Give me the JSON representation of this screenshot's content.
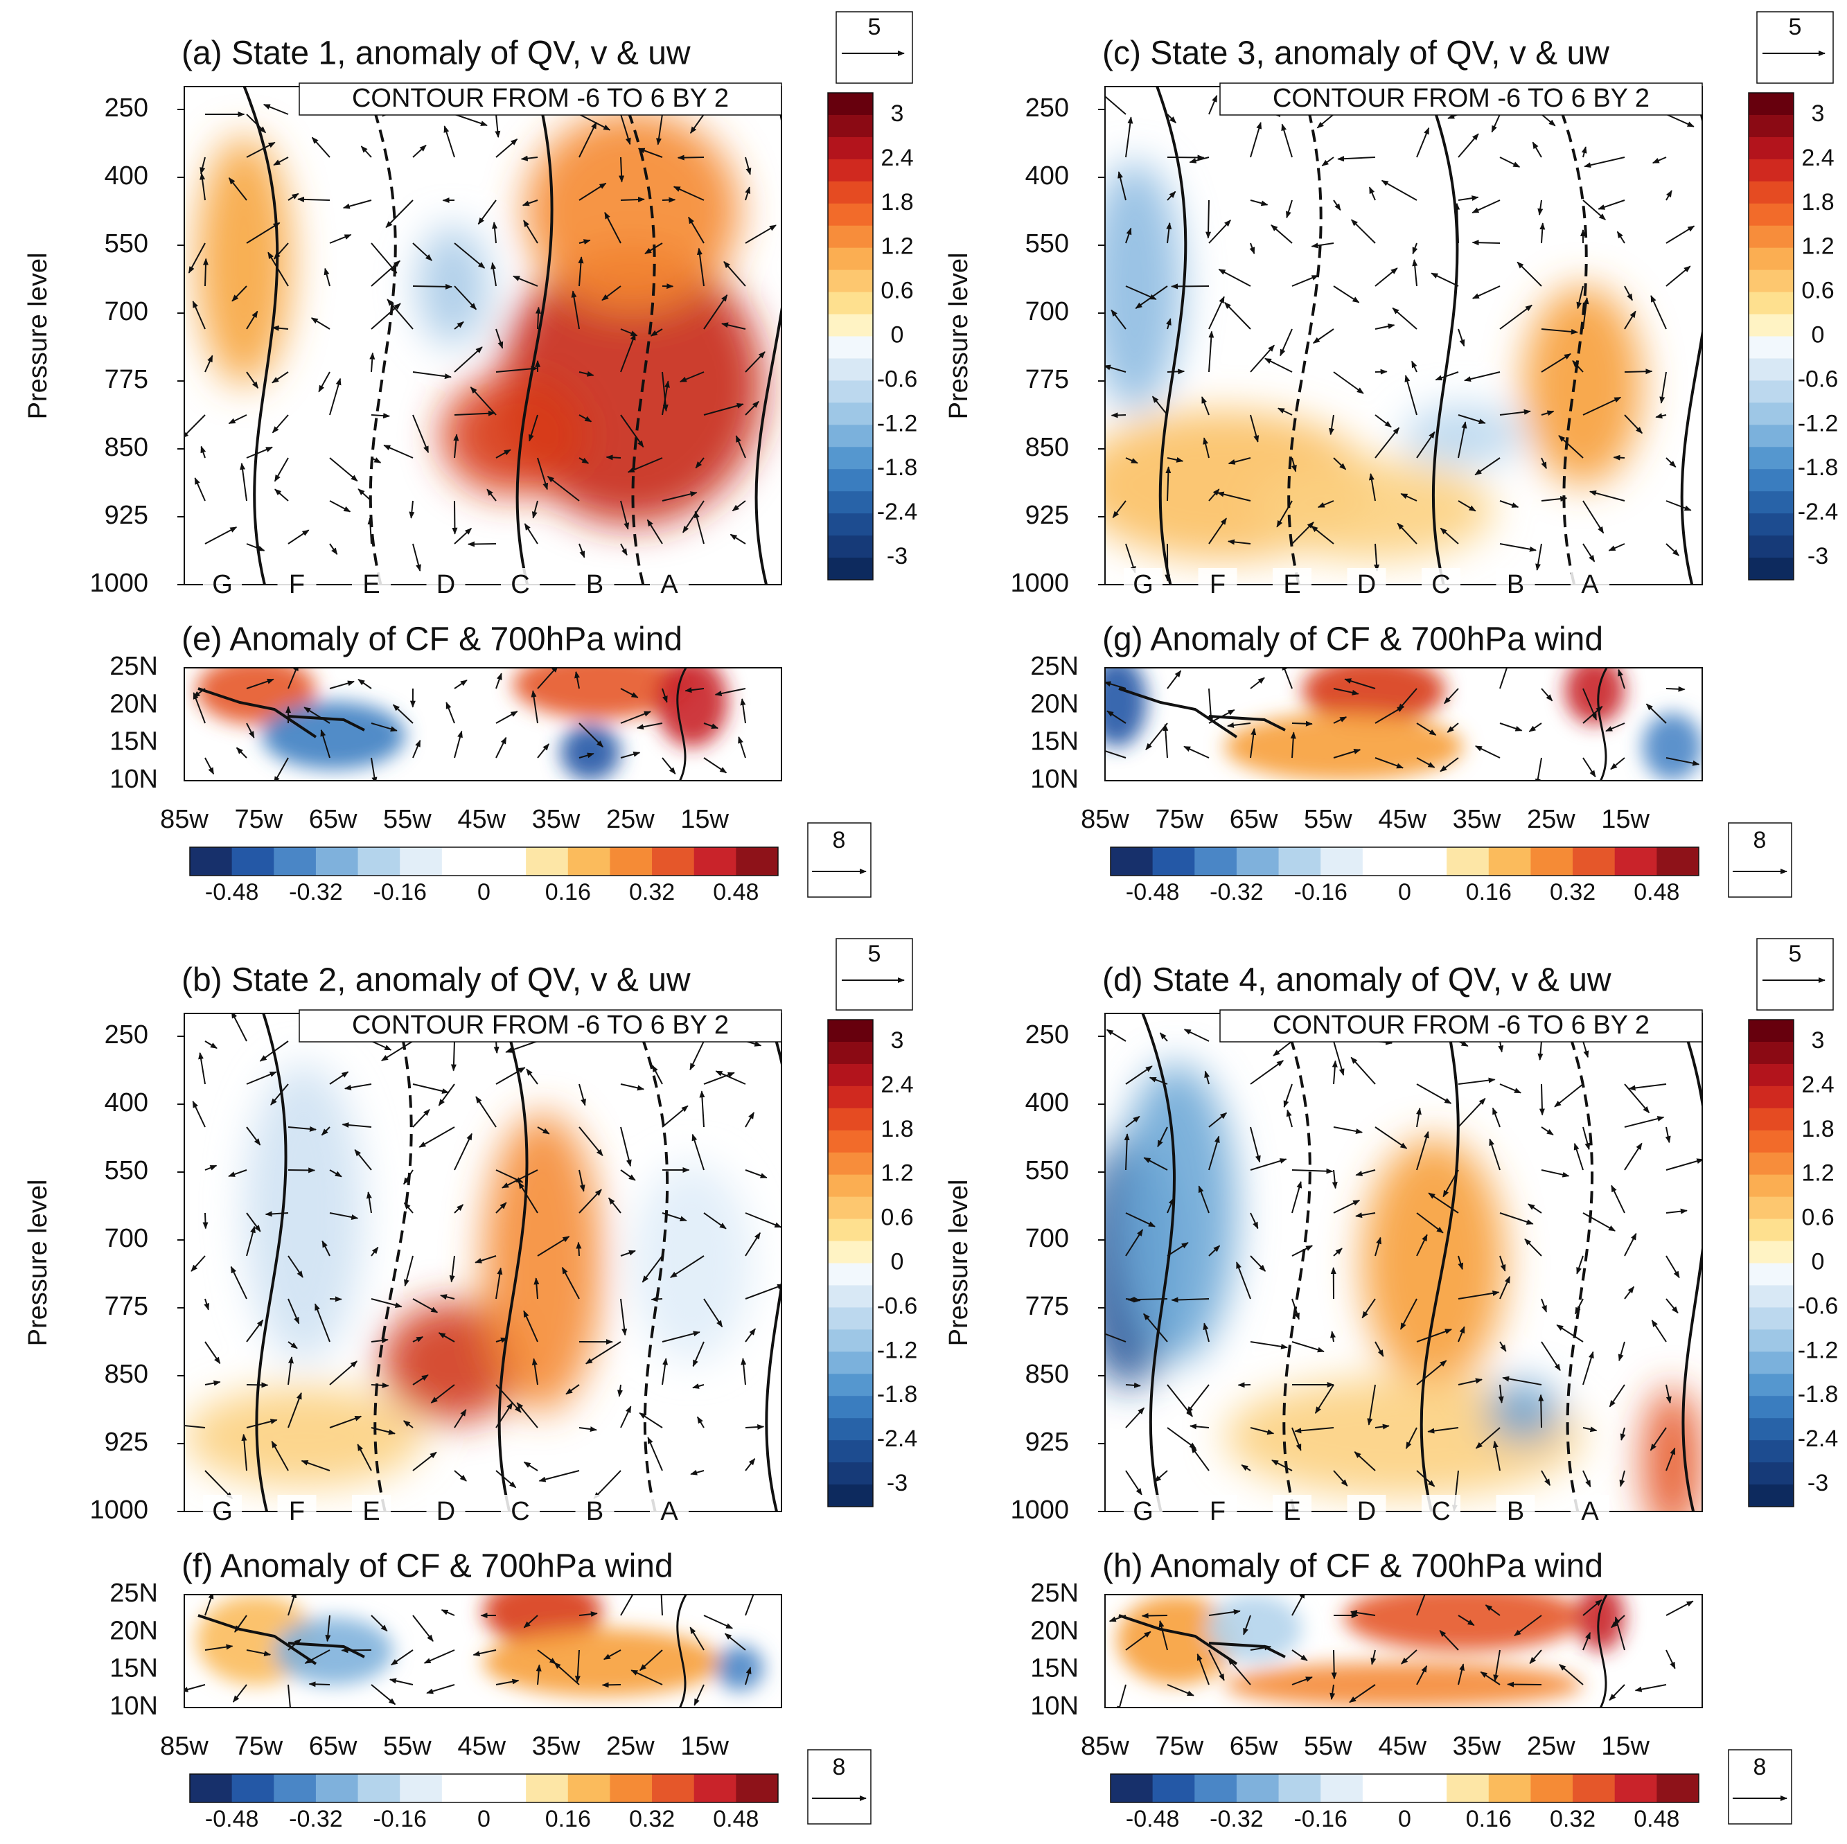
{
  "panels": [
    {
      "title": "(a) State 1, anomaly of QV, v & uw",
      "contour_note": "CONTOUR FROM -6 TO 6 BY 2",
      "ylabel": "Pressure level",
      "yticks": [
        250,
        400,
        550,
        700,
        775,
        850,
        925,
        1000
      ],
      "points": [
        "G",
        "F",
        "E",
        "D",
        "C",
        "B",
        "A"
      ],
      "colorbar_ticks": [
        3,
        2.4,
        1.8,
        1.2,
        0.6,
        0,
        -0.6,
        -1.2,
        -1.8,
        -2.4,
        -3
      ],
      "reference_vector": 5,
      "map": {
        "title": "(e) Anomaly of CF & 700hPa wind",
        "yticks": [
          "25N",
          "20N",
          "15N",
          "10N"
        ],
        "xticks": [
          "85w",
          "75w",
          "65w",
          "55w",
          "45w",
          "35w",
          "25w",
          "15w"
        ],
        "colorbar_ticks": [
          -0.48,
          -0.32,
          -0.16,
          0,
          0.16,
          0.32,
          0.48
        ],
        "reference_vector": 8
      }
    },
    {
      "title": "(c) State 3, anomaly of QV, v & uw",
      "contour_note": "CONTOUR FROM -6 TO 6 BY 2",
      "ylabel": "Pressure level",
      "yticks": [
        250,
        400,
        550,
        700,
        775,
        850,
        925,
        1000
      ],
      "points": [
        "G",
        "F",
        "E",
        "D",
        "C",
        "B",
        "A"
      ],
      "colorbar_ticks": [
        3,
        2.4,
        1.8,
        1.2,
        0.6,
        0,
        -0.6,
        -1.2,
        -1.8,
        -2.4,
        -3
      ],
      "reference_vector": 5,
      "map": {
        "title": "(g) Anomaly of CF & 700hPa wind",
        "yticks": [
          "25N",
          "20N",
          "15N",
          "10N"
        ],
        "xticks": [
          "85w",
          "75w",
          "65w",
          "55w",
          "45w",
          "35w",
          "25w",
          "15w"
        ],
        "colorbar_ticks": [
          -0.48,
          -0.32,
          -0.16,
          0,
          0.16,
          0.32,
          0.48
        ],
        "reference_vector": 8
      }
    },
    {
      "title": "(b) State 2, anomaly of QV, v & uw",
      "contour_note": "CONTOUR FROM -6 TO 6 BY 2",
      "ylabel": "Pressure level",
      "yticks": [
        250,
        400,
        550,
        700,
        775,
        850,
        925,
        1000
      ],
      "points": [
        "G",
        "F",
        "E",
        "D",
        "C",
        "B",
        "A"
      ],
      "colorbar_ticks": [
        3,
        2.4,
        1.8,
        1.2,
        0.6,
        0,
        -0.6,
        -1.2,
        -1.8,
        -2.4,
        -3
      ],
      "reference_vector": 5,
      "map": {
        "title": "(f) Anomaly of CF & 700hPa wind",
        "yticks": [
          "25N",
          "20N",
          "15N",
          "10N"
        ],
        "xticks": [
          "85w",
          "75w",
          "65w",
          "55w",
          "45w",
          "35w",
          "25w",
          "15w"
        ],
        "colorbar_ticks": [
          -0.48,
          -0.32,
          -0.16,
          0,
          0.16,
          0.32,
          0.48
        ],
        "reference_vector": 8
      }
    },
    {
      "title": "(d) State 4, anomaly of QV, v & uw",
      "contour_note": "CONTOUR FROM -6 TO 6 BY 2",
      "ylabel": "Pressure level",
      "yticks": [
        250,
        400,
        550,
        700,
        775,
        850,
        925,
        1000
      ],
      "points": [
        "G",
        "F",
        "E",
        "D",
        "C",
        "B",
        "A"
      ],
      "colorbar_ticks": [
        3,
        2.4,
        1.8,
        1.2,
        0.6,
        0,
        -0.6,
        -1.2,
        -1.8,
        -2.4,
        -3
      ],
      "reference_vector": 5,
      "map": {
        "title": "(h) Anomaly of CF & 700hPa wind",
        "yticks": [
          "25N",
          "20N",
          "15N",
          "10N"
        ],
        "xticks": [
          "85w",
          "75w",
          "65w",
          "55w",
          "45w",
          "35w",
          "25w",
          "15w"
        ],
        "colorbar_ticks": [
          -0.48,
          -0.32,
          -0.16,
          0,
          0.16,
          0.32,
          0.48
        ],
        "reference_vector": 8
      }
    }
  ]
}
